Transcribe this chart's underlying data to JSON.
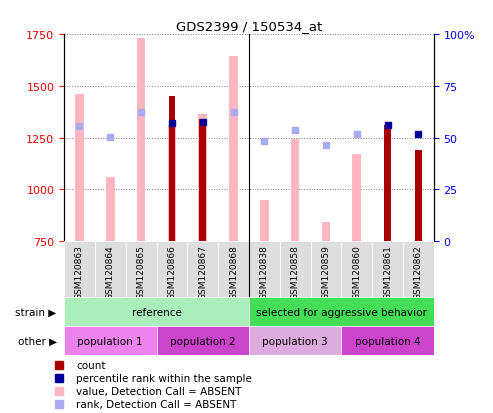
{
  "title": "GDS2399 / 150534_at",
  "samples": [
    "GSM120863",
    "GSM120864",
    "GSM120865",
    "GSM120866",
    "GSM120867",
    "GSM120868",
    "GSM120838",
    "GSM120858",
    "GSM120859",
    "GSM120860",
    "GSM120861",
    "GSM120862"
  ],
  "count_values": [
    null,
    null,
    null,
    1450,
    1340,
    null,
    null,
    null,
    null,
    null,
    1310,
    1190
  ],
  "percentile_rank_vals": [
    null,
    null,
    null,
    1320,
    1325,
    null,
    null,
    null,
    null,
    null,
    1310,
    1270
  ],
  "absent_value": [
    1460,
    1060,
    1730,
    1310,
    1365,
    1645,
    950,
    1245,
    845,
    1170,
    null,
    null
  ],
  "absent_rank": [
    1305,
    1255,
    1375,
    null,
    null,
    1375,
    1235,
    1285,
    1215,
    1270,
    null,
    null
  ],
  "ylim_left": [
    750,
    1750
  ],
  "ylim_right": [
    0,
    100
  ],
  "yticks_left": [
    750,
    1000,
    1250,
    1500,
    1750
  ],
  "yticks_right": [
    0,
    25,
    50,
    75,
    100
  ],
  "strain_groups": [
    {
      "label": "reference",
      "start": 0,
      "end": 6,
      "color": "#aaeebb"
    },
    {
      "label": "selected for aggressive behavior",
      "start": 6,
      "end": 12,
      "color": "#44dd55"
    }
  ],
  "other_groups": [
    {
      "label": "population 1",
      "start": 0,
      "end": 3,
      "color": "#ee88ee"
    },
    {
      "label": "population 2",
      "start": 3,
      "end": 6,
      "color": "#cc44cc"
    },
    {
      "label": "population 3",
      "start": 6,
      "end": 9,
      "color": "#ddaadd"
    },
    {
      "label": "population 4",
      "start": 9,
      "end": 12,
      "color": "#cc44cc"
    }
  ],
  "count_color": "#aa0000",
  "percentile_color": "#000099",
  "absent_value_color": "#ffb6c1",
  "absent_rank_color": "#aaaaee",
  "legend_items": [
    {
      "color": "#aa0000",
      "label": "count"
    },
    {
      "color": "#000099",
      "label": "percentile rank within the sample"
    },
    {
      "color": "#ffb6c1",
      "label": "value, Detection Call = ABSENT"
    },
    {
      "color": "#aaaaee",
      "label": "rank, Detection Call = ABSENT"
    }
  ]
}
